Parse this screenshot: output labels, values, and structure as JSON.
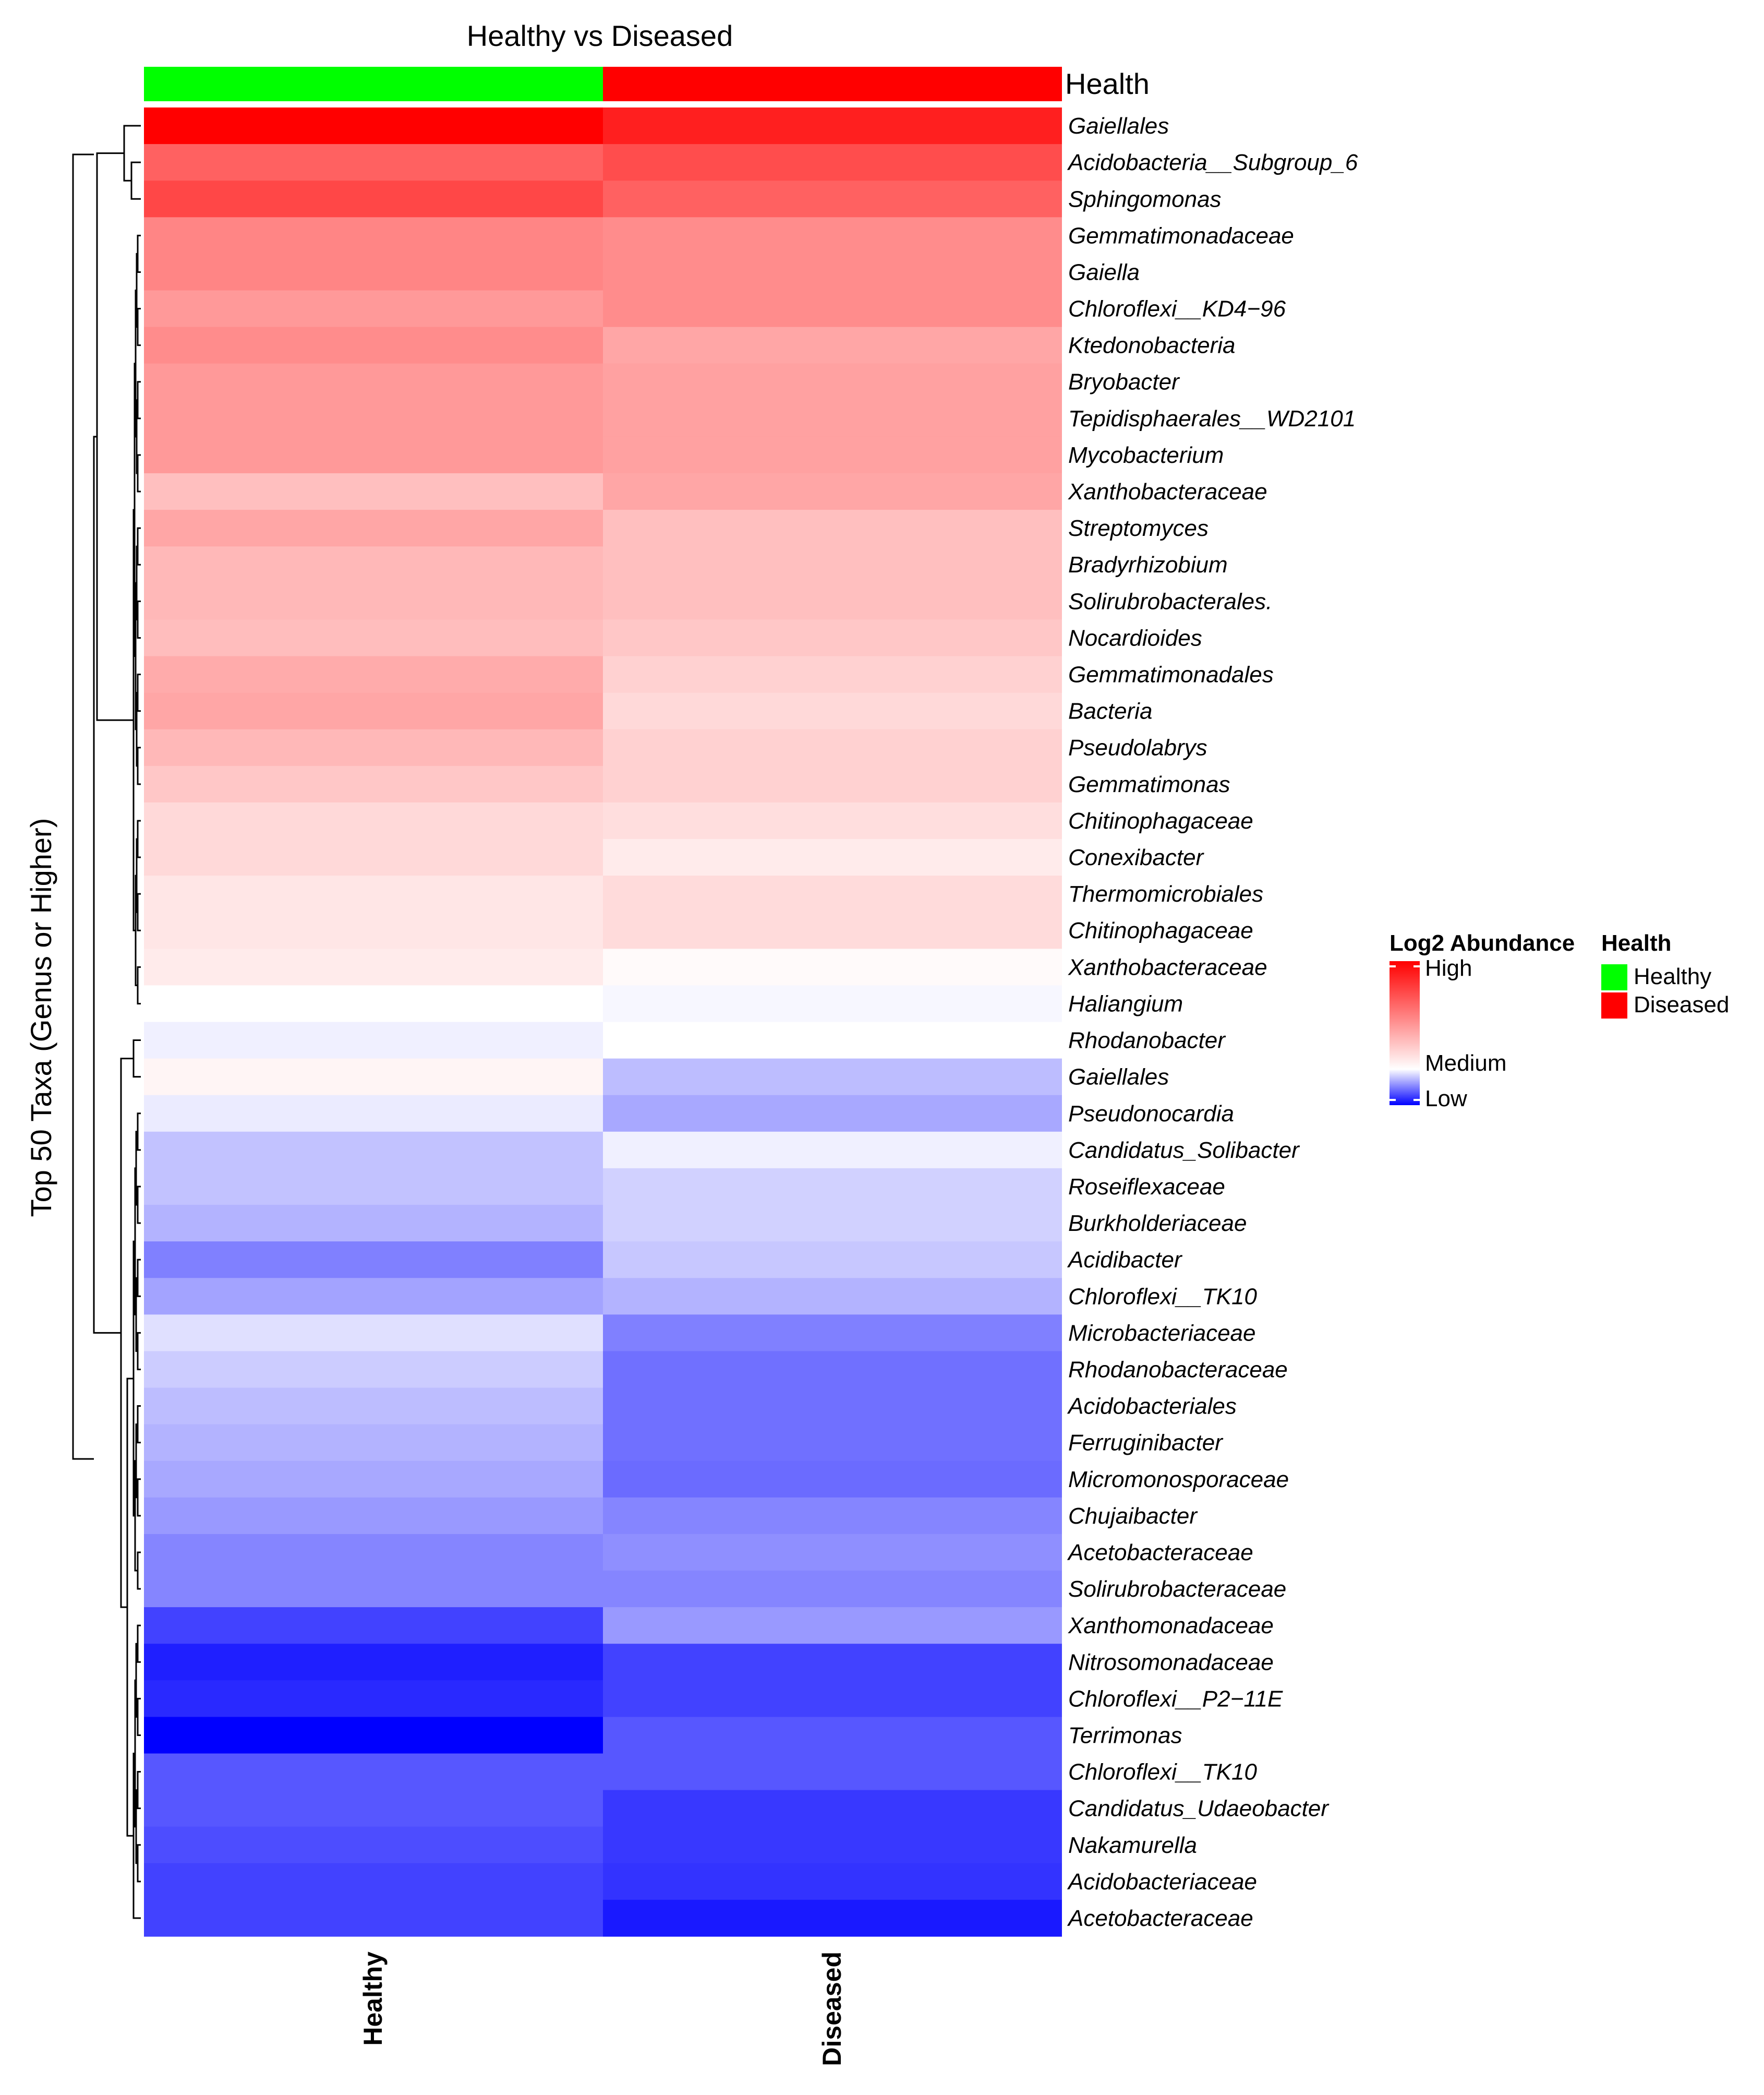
{
  "chart_data": {
    "type": "heatmap",
    "title": "Healthy vs Diseased",
    "ylabel": "Top 50 Taxa (Genus or Higher)",
    "columns": [
      "Healthy",
      "Diseased"
    ],
    "annotation": {
      "name": "Health",
      "groups": [
        {
          "label": "Healthy",
          "color": "#00ff00"
        },
        {
          "label": "Diseased",
          "color": "#ff0000"
        }
      ]
    },
    "color_scale": {
      "title": "Log2 Abundance",
      "low_label": "Low",
      "mid_label": "Medium",
      "high_label": "High",
      "low_color": "#0000ff",
      "mid_color": "#ffffff",
      "high_color": "#ff0000",
      "range": [
        -1,
        1
      ]
    },
    "rows": [
      "Gaiellales",
      "Acidobacteria__Subgroup_6",
      "Sphingomonas",
      "Gemmatimonadaceae",
      "Gaiella",
      "Chloroflexi__KD4−96",
      "Ktedonobacteria",
      "Bryobacter",
      "Tepidisphaerales__WD2101",
      "Mycobacterium",
      "Xanthobacteraceae",
      "Streptomyces",
      "Bradyrhizobium",
      "Solirubrobacterales.",
      "Nocardioides",
      "Gemmatimonadales",
      "Bacteria",
      "Pseudolabrys",
      "Gemmatimonas",
      "Chitinophagaceae",
      "Conexibacter",
      "Thermomicrobiales",
      "Chitinophagaceae",
      "Xanthobacteraceae",
      "Haliangium",
      "Rhodanobacter",
      "Gaiellales",
      "Pseudonocardia",
      "Candidatus_Solibacter",
      "Roseiflexaceae",
      "Burkholderiaceae",
      "Acidibacter",
      "Chloroflexi__TK10",
      "Microbacteriaceae",
      "Rhodanobacteraceae",
      "Acidobacteriales",
      "Ferruginibacter",
      "Micromonosporaceae",
      "Chujaibacter",
      "Acetobacteraceae",
      "Solirubrobacteraceae",
      "Xanthomonadaceae",
      "Nitrosomonadaceae",
      "Chloroflexi__P2−11E",
      "Terrimonas",
      "Chloroflexi__TK10",
      "Candidatus_Udaeobacter",
      "Nakamurella",
      "Acidobacteriaceae",
      "Acetobacteraceae"
    ],
    "values": [
      [
        1.0,
        0.88
      ],
      [
        0.62,
        0.7
      ],
      [
        0.72,
        0.62
      ],
      [
        0.48,
        0.45
      ],
      [
        0.48,
        0.45
      ],
      [
        0.4,
        0.45
      ],
      [
        0.45,
        0.35
      ],
      [
        0.4,
        0.37
      ],
      [
        0.4,
        0.37
      ],
      [
        0.4,
        0.37
      ],
      [
        0.25,
        0.35
      ],
      [
        0.35,
        0.25
      ],
      [
        0.28,
        0.25
      ],
      [
        0.28,
        0.25
      ],
      [
        0.26,
        0.22
      ],
      [
        0.33,
        0.18
      ],
      [
        0.35,
        0.15
      ],
      [
        0.28,
        0.18
      ],
      [
        0.22,
        0.18
      ],
      [
        0.15,
        0.13
      ],
      [
        0.15,
        0.08
      ],
      [
        0.1,
        0.14
      ],
      [
        0.1,
        0.14
      ],
      [
        0.08,
        0.02
      ],
      [
        0.0,
        -0.03
      ],
      [
        -0.06,
        0.0
      ],
      [
        0.04,
        -0.26
      ],
      [
        -0.08,
        -0.34
      ],
      [
        -0.24,
        -0.06
      ],
      [
        -0.24,
        -0.18
      ],
      [
        -0.3,
        -0.18
      ],
      [
        -0.5,
        -0.22
      ],
      [
        -0.36,
        -0.3
      ],
      [
        -0.12,
        -0.5
      ],
      [
        -0.2,
        -0.56
      ],
      [
        -0.26,
        -0.56
      ],
      [
        -0.3,
        -0.56
      ],
      [
        -0.34,
        -0.58
      ],
      [
        -0.4,
        -0.48
      ],
      [
        -0.48,
        -0.44
      ],
      [
        -0.48,
        -0.48
      ],
      [
        -0.74,
        -0.4
      ],
      [
        -0.88,
        -0.74
      ],
      [
        -0.84,
        -0.74
      ],
      [
        -1.0,
        -0.66
      ],
      [
        -0.66,
        -0.66
      ],
      [
        -0.66,
        -0.78
      ],
      [
        -0.7,
        -0.78
      ],
      [
        -0.74,
        -0.8
      ],
      [
        -0.74,
        -0.9
      ]
    ],
    "dendrogram": "row clustering tree"
  }
}
